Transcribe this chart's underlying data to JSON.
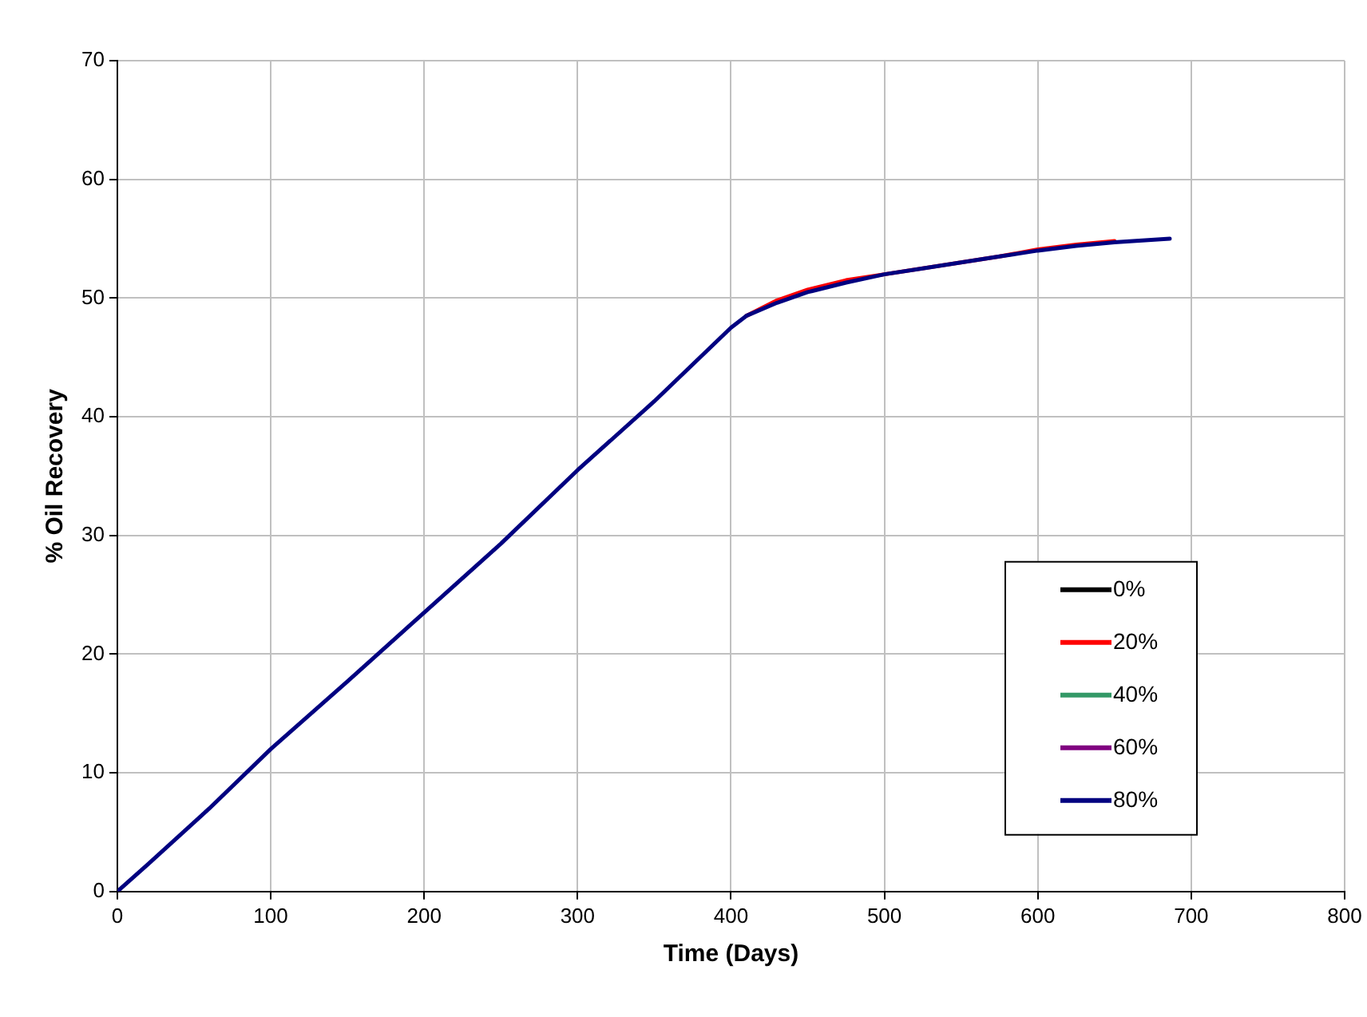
{
  "chart_data": {
    "type": "line",
    "xlabel": "Time (Days)",
    "ylabel": "% Oil Recovery",
    "xlim": [
      0,
      800
    ],
    "xticks": [
      0,
      100,
      200,
      300,
      400,
      500,
      600,
      700,
      800
    ],
    "ylim": [
      0,
      70
    ],
    "yticks": [
      0,
      10,
      20,
      30,
      40,
      50,
      60,
      70
    ],
    "grid": true,
    "legend": "bottom right",
    "marker": "none",
    "line_style": "solid",
    "series": [
      {
        "name": "0%",
        "color": "#000000"
      },
      {
        "name": "20%",
        "color": "#ff0000",
        "x": [
          410,
          430,
          450,
          475,
          500,
          575,
          600,
          625,
          650
        ],
        "values": [
          48.5,
          49.8,
          50.7,
          51.5,
          52,
          53.5,
          54.1,
          54.5,
          54.8
        ]
      },
      {
        "name": "40%",
        "color": "#339966"
      },
      {
        "name": "60%",
        "color": "#800080"
      },
      {
        "name": "80%",
        "color": "#000080",
        "x": [
          0,
          20,
          60,
          100,
          150,
          200,
          250,
          300,
          350,
          400,
          410,
          430,
          450,
          475,
          500,
          525,
          550,
          575,
          600,
          625,
          650,
          686
        ],
        "values": [
          0,
          2.3,
          7,
          12,
          17.7,
          23.5,
          29.3,
          35.5,
          41.3,
          47.5,
          48.5,
          49.6,
          50.5,
          51.3,
          52,
          52.5,
          53,
          53.5,
          54,
          54.4,
          54.7,
          55
        ]
      }
    ]
  }
}
